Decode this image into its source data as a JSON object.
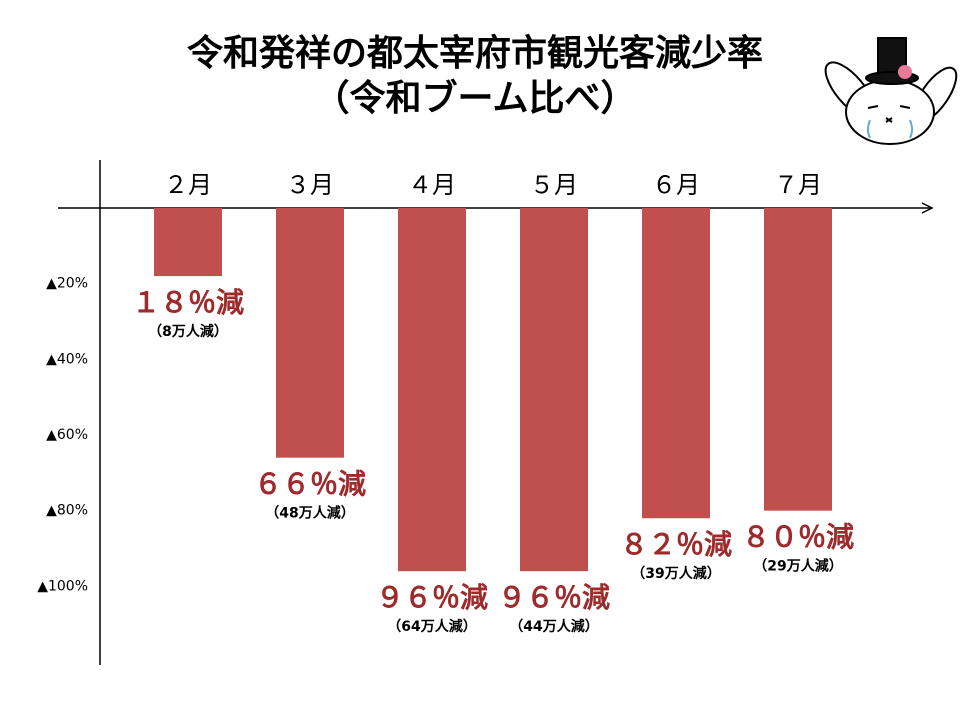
{
  "chart_data": {
    "type": "bar",
    "title": "令和発祥の都太宰府市観光客減少率",
    "subtitle": "（令和ブーム比べ）",
    "categories": [
      "２月",
      "３月",
      "４月",
      "５月",
      "６月",
      "７月"
    ],
    "values": [
      18,
      66,
      96,
      96,
      82,
      80
    ],
    "value_labels": [
      "１８％減",
      "６６％減",
      "９６％減",
      "９６％減",
      "８２％減",
      "８０％減"
    ],
    "count_labels": [
      "（8万人減）",
      "（48万人減）",
      "（64万人減）",
      "（44万人減）",
      "（39万人減）",
      "（29万人減）"
    ],
    "color": "#c0504d",
    "ylim": [
      0,
      120
    ],
    "yticks": [
      {
        "value": 20,
        "label": "▲20%"
      },
      {
        "value": 40,
        "label": "▲40%"
      },
      {
        "value": 60,
        "label": "▲60%"
      },
      {
        "value": 80,
        "label": "▲80%"
      },
      {
        "value": 100,
        "label": "▲100%"
      }
    ],
    "inverted": true,
    "grid": false
  }
}
